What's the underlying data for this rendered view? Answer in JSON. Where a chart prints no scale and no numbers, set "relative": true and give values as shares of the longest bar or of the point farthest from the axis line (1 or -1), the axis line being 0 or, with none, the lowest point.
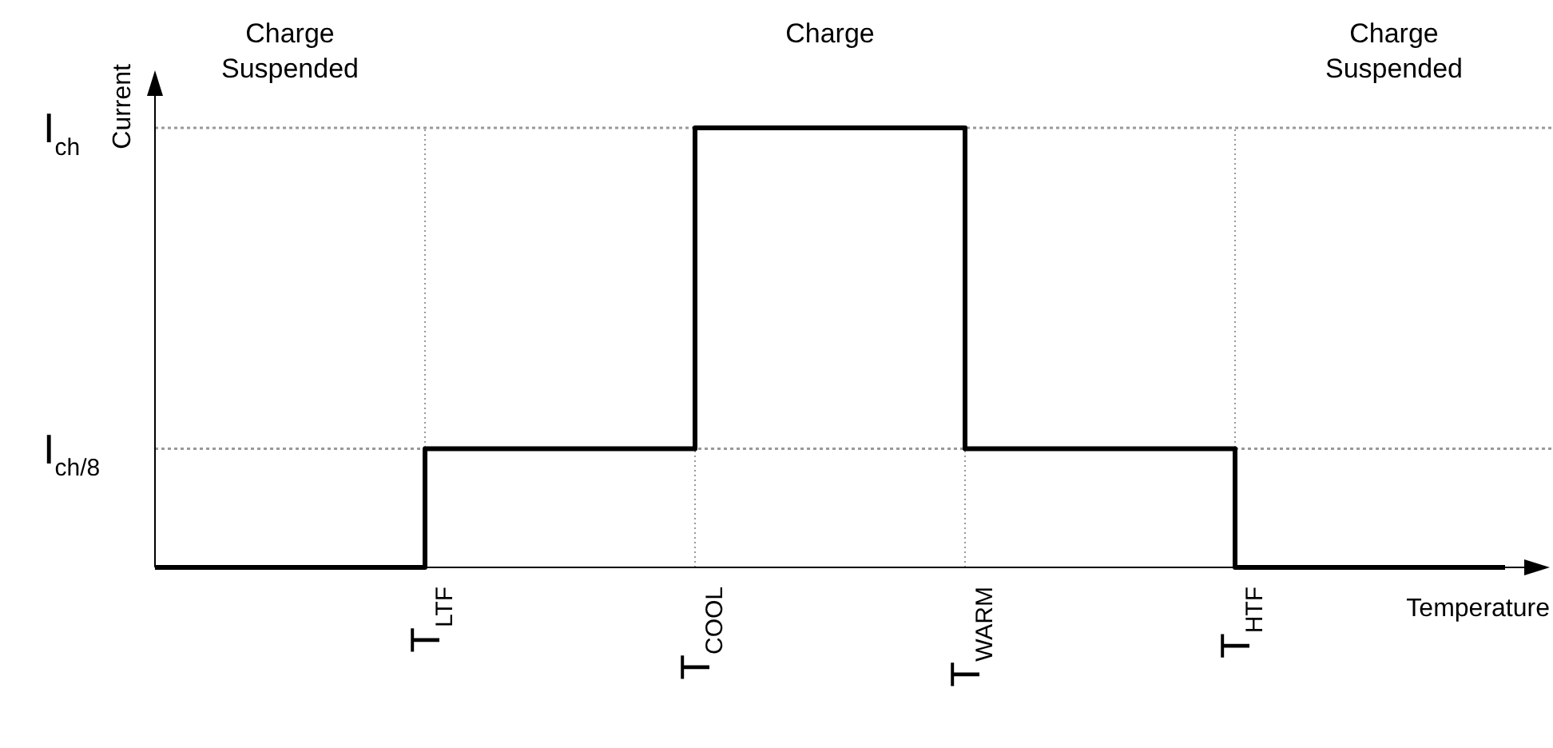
{
  "chart_data": {
    "type": "step",
    "xlabel": "Temperature",
    "ylabel": "Current",
    "relative": true,
    "categories": [
      null,
      "T$_{LTF}$",
      "T$_{COOL}$",
      "T$_{WARM}$",
      "T$_{HTF}$",
      null
    ],
    "values": [
      0,
      0.27,
      1,
      0.27,
      0,
      0
    ],
    "color": "#000000",
    "ref_lines": [
      {
        "axis": "y",
        "value": 1,
        "label": "I$_{ch}$",
        "color": "#999999",
        "line_style": "dotted"
      },
      {
        "axis": "y",
        "value": 0.27,
        "label": "I$_{ch/8}$",
        "color": "#999999",
        "line_style": "dotted"
      }
    ],
    "annotations": [
      "Charge Suspended",
      "Charge",
      "Charge Suspended"
    ],
    "grid": "x",
    "legend": false,
    "marker": "none",
    "line_style": "solid"
  }
}
